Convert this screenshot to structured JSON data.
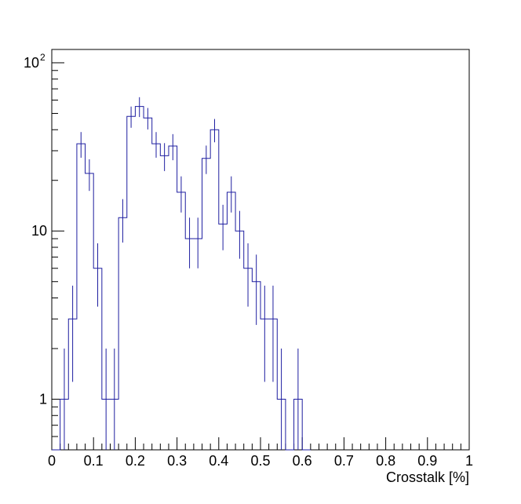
{
  "chart_data": {
    "type": "histogram",
    "title": "",
    "xlabel": "Crosstalk [%]",
    "ylabel": "",
    "xlim": [
      0,
      1
    ],
    "ylim": [
      0.5,
      120
    ],
    "y_scale": "log",
    "grid": false,
    "legend": "none",
    "line_color": "#1e1ea0",
    "x_tick_labels": [
      "0",
      "0.1",
      "0.2",
      "0.3",
      "0.4",
      "0.5",
      "0.6",
      "0.7",
      "0.8",
      "0.9",
      "1"
    ],
    "y_tick_labels": [
      {
        "value": 1,
        "base": "1",
        "exp": ""
      },
      {
        "value": 10,
        "base": "10",
        "exp": ""
      },
      {
        "value": 100,
        "base": "10",
        "exp": "2"
      }
    ],
    "bin_width": 0.02,
    "bins": [
      {
        "x_low": 0.0,
        "count": 0
      },
      {
        "x_low": 0.02,
        "count": 1
      },
      {
        "x_low": 0.04,
        "count": 3
      },
      {
        "x_low": 0.06,
        "count": 33
      },
      {
        "x_low": 0.08,
        "count": 22
      },
      {
        "x_low": 0.1,
        "count": 6
      },
      {
        "x_low": 0.12,
        "count": 1
      },
      {
        "x_low": 0.14,
        "count": 1
      },
      {
        "x_low": 0.16,
        "count": 12
      },
      {
        "x_low": 0.18,
        "count": 48
      },
      {
        "x_low": 0.2,
        "count": 55
      },
      {
        "x_low": 0.22,
        "count": 47
      },
      {
        "x_low": 0.24,
        "count": 33
      },
      {
        "x_low": 0.26,
        "count": 28
      },
      {
        "x_low": 0.28,
        "count": 32
      },
      {
        "x_low": 0.3,
        "count": 17
      },
      {
        "x_low": 0.32,
        "count": 9
      },
      {
        "x_low": 0.34,
        "count": 9
      },
      {
        "x_low": 0.36,
        "count": 27
      },
      {
        "x_low": 0.38,
        "count": 40
      },
      {
        "x_low": 0.4,
        "count": 11
      },
      {
        "x_low": 0.42,
        "count": 17
      },
      {
        "x_low": 0.44,
        "count": 10
      },
      {
        "x_low": 0.46,
        "count": 6
      },
      {
        "x_low": 0.48,
        "count": 5
      },
      {
        "x_low": 0.5,
        "count": 3
      },
      {
        "x_low": 0.52,
        "count": 3
      },
      {
        "x_low": 0.54,
        "count": 1
      },
      {
        "x_low": 0.56,
        "count": 0
      },
      {
        "x_low": 0.58,
        "count": 1
      },
      {
        "x_low": 0.6,
        "count": 0
      }
    ]
  }
}
